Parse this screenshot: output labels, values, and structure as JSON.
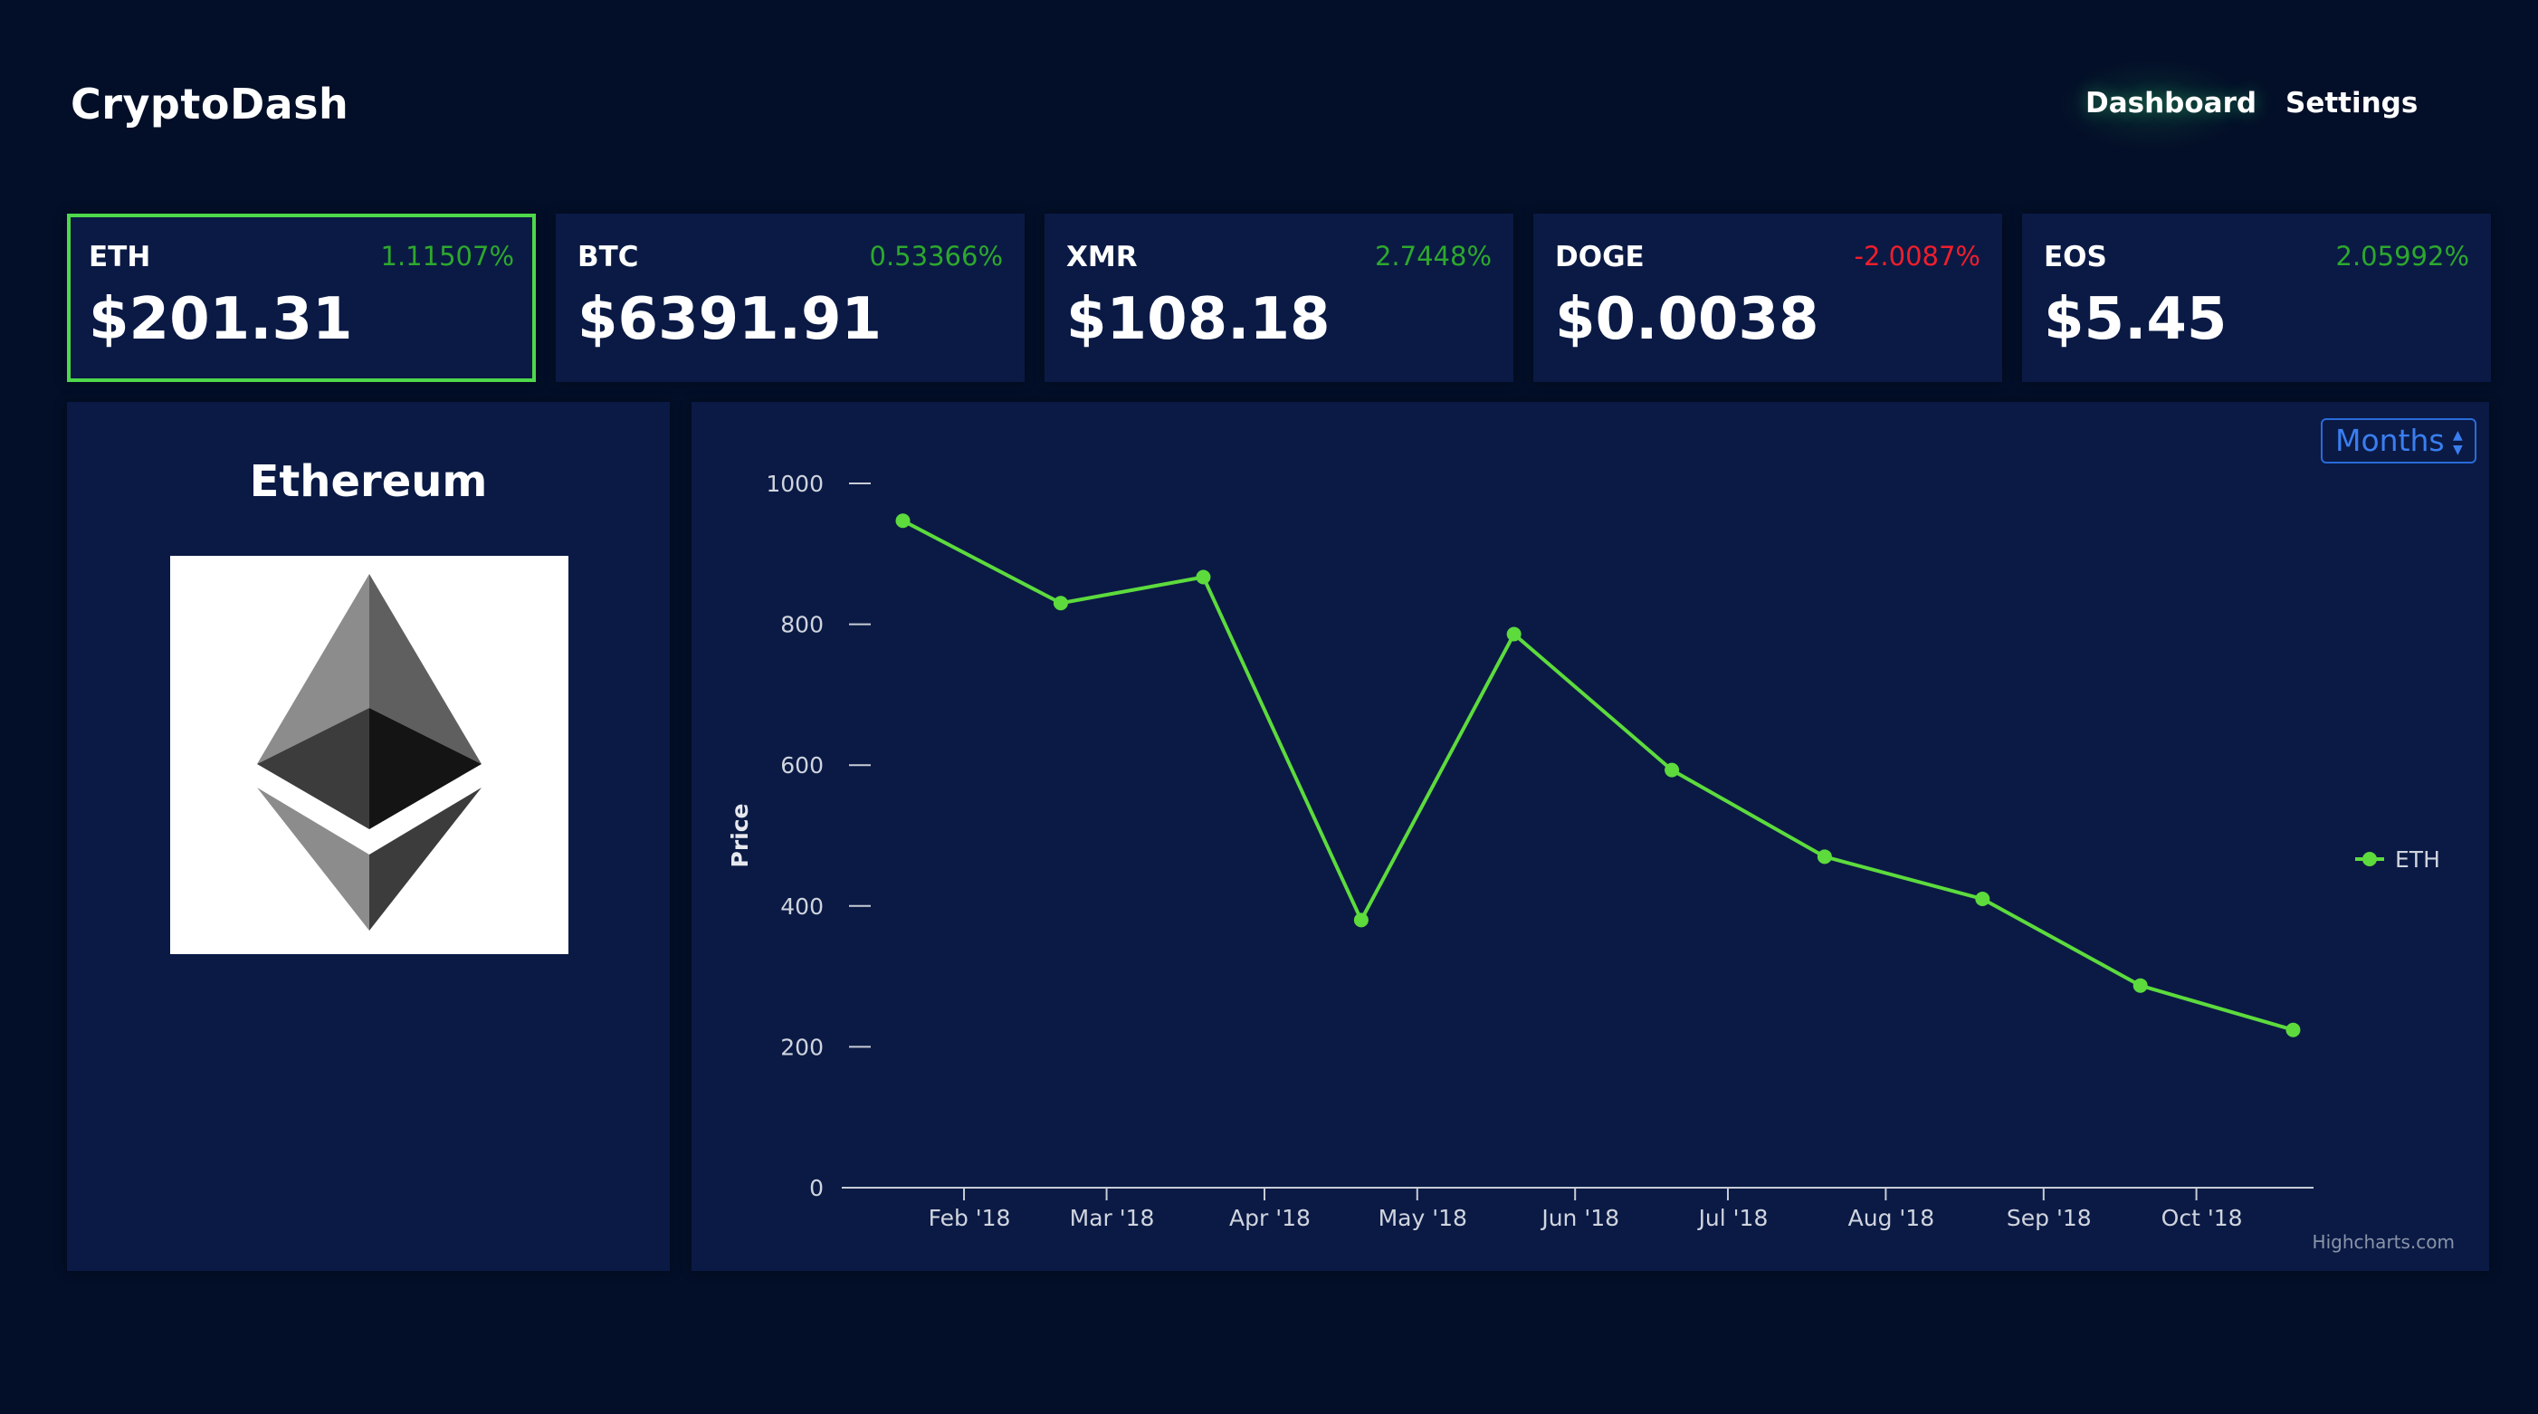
{
  "app": {
    "title": "CryptoDash"
  },
  "nav": {
    "dashboard": "Dashboard",
    "settings": "Settings"
  },
  "tiles": [
    {
      "symbol": "ETH",
      "change": "1.11507%",
      "price": "$201.31",
      "direction": "up",
      "active": true
    },
    {
      "symbol": "BTC",
      "change": "0.53366%",
      "price": "$6391.91",
      "direction": "up",
      "active": false
    },
    {
      "symbol": "XMR",
      "change": "2.7448%",
      "price": "$108.18",
      "direction": "up",
      "active": false
    },
    {
      "symbol": "DOGE",
      "change": "-2.0087%",
      "price": "$0.0038",
      "direction": "down",
      "active": false
    },
    {
      "symbol": "EOS",
      "change": "2.05992%",
      "price": "$5.45",
      "direction": "up",
      "active": false
    }
  ],
  "coin": {
    "name": "Ethereum",
    "logo_icon": "ethereum-diamond-icon"
  },
  "chart_controls": {
    "range": "Months"
  },
  "colors": {
    "background": "#030f28",
    "panel": "#0a1a45",
    "accent": "#4fd84a",
    "up": "#2da82d",
    "down": "#f01e2c",
    "select": "#3a7ef0"
  },
  "chart_data": {
    "type": "line",
    "title": "",
    "xlabel": "",
    "ylabel": "Price",
    "ylim": [
      0,
      1000
    ],
    "yticks": [
      0,
      200,
      400,
      600,
      800,
      1000
    ],
    "tick_labels": [
      "Feb '18",
      "Mar '18",
      "Apr '18",
      "May '18",
      "Jun '18",
      "Jul '18",
      "Aug '18",
      "Sep '18",
      "Oct '18"
    ],
    "legend": "right",
    "credit": "Highcharts.com",
    "series": [
      {
        "name": "ETH",
        "color": "#5ddb3d",
        "x": [
          "2018-01-20",
          "2018-02-20",
          "2018-03-20",
          "2018-04-20",
          "2018-05-20",
          "2018-06-20",
          "2018-07-20",
          "2018-08-20",
          "2018-09-20",
          "2018-10-20"
        ],
        "values": [
          947,
          830,
          867,
          380,
          786,
          593,
          470,
          410,
          287,
          224
        ]
      }
    ]
  }
}
